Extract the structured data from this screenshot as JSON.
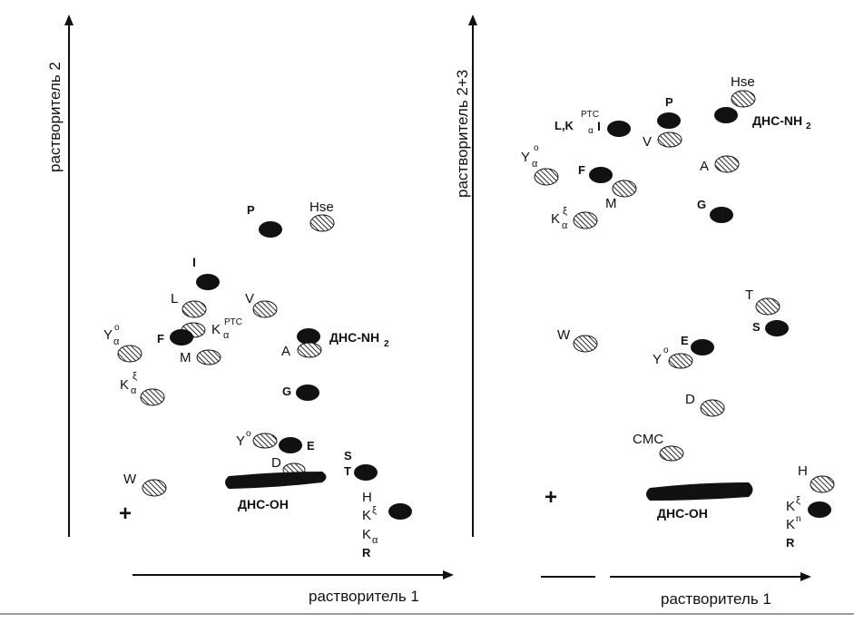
{
  "left_panel": {
    "x_axis_label": "растворитель 1",
    "y_axis_label": "растворитель 2",
    "origin_mark": "+",
    "spots": [
      {
        "label": "P",
        "type": "solid"
      },
      {
        "label": "Hse",
        "type": "hatched"
      },
      {
        "label": "I",
        "type": "solid"
      },
      {
        "label": "L",
        "type": "hatched"
      },
      {
        "label": "V",
        "type": "hatched"
      },
      {
        "label": "K",
        "type": "hatched"
      },
      {
        "label": "Y",
        "type": "hatched"
      },
      {
        "label": "F",
        "type": "solid"
      },
      {
        "label": "M",
        "type": "hatched"
      },
      {
        "label": "ДНС-NH2",
        "type": "solid"
      },
      {
        "label": "A",
        "type": "hatched"
      },
      {
        "label": "K",
        "type": "hatched"
      },
      {
        "label": "G",
        "type": "solid"
      },
      {
        "label": "Y",
        "type": "hatched"
      },
      {
        "label": "E",
        "type": "solid"
      },
      {
        "label": "D",
        "type": "hatched"
      },
      {
        "label": "S",
        "type": "solid"
      },
      {
        "label": "T",
        "type": "solid"
      },
      {
        "label": "W",
        "type": "hatched"
      },
      {
        "label": "ДНС-ОН",
        "type": "streak"
      },
      {
        "label": "H K K R",
        "type": "solid"
      }
    ],
    "texts": {
      "P": "P",
      "Hse": "Hse",
      "I": "I",
      "L": "L",
      "V": "V",
      "K": "K",
      "alpha": "α",
      "PTC": "PTC",
      "Y": "Y",
      "o": "o",
      "F": "F",
      "M": "M",
      "DNS_NH": "ДНС-NH",
      "sub2": "2",
      "A": "A",
      "xi": "ξ",
      "G": "G",
      "E": "E",
      "D": "D",
      "S": "S",
      "T": "T",
      "W": "W",
      "DNS_OH": "ДНС-ОН",
      "H": "H",
      "R": "R"
    }
  },
  "right_panel": {
    "x_axis_label": "растворитель 1",
    "y_axis_label": "растворитель 2+3",
    "origin_mark": "+",
    "spots": [
      {
        "label": "Hse",
        "type": "hatched"
      },
      {
        "label": "P",
        "type": "solid"
      },
      {
        "label": "L,K,I",
        "type": "solid"
      },
      {
        "label": "ДНС-NH2",
        "type": "solid"
      },
      {
        "label": "V",
        "type": "hatched"
      },
      {
        "label": "Y",
        "type": "hatched"
      },
      {
        "label": "F",
        "type": "solid"
      },
      {
        "label": "A",
        "type": "hatched"
      },
      {
        "label": "M",
        "type": "hatched"
      },
      {
        "label": "G",
        "type": "solid"
      },
      {
        "label": "K",
        "type": "hatched"
      },
      {
        "label": "T",
        "type": "hatched"
      },
      {
        "label": "S",
        "type": "solid"
      },
      {
        "label": "W",
        "type": "hatched"
      },
      {
        "label": "E",
        "type": "solid"
      },
      {
        "label": "Y",
        "type": "hatched"
      },
      {
        "label": "D",
        "type": "hatched"
      },
      {
        "label": "CMC",
        "type": "hatched"
      },
      {
        "label": "H",
        "type": "hatched"
      },
      {
        "label": "ДНС-ОН",
        "type": "streak"
      },
      {
        "label": "K K R",
        "type": "solid"
      }
    ],
    "texts": {
      "Hse": "Hse",
      "P": "P",
      "LK": "L,K",
      "I": "I",
      "alpha": "α",
      "PTC": "PTC",
      "DNS_NH": "ДНС-NH",
      "sub2": "2",
      "V": "V",
      "Y": "Y",
      "o": "o",
      "F": "F",
      "A": "A",
      "M": "M",
      "G": "G",
      "K": "K",
      "xi": "ξ",
      "T": "T",
      "S": "S",
      "W": "W",
      "E": "E",
      "D": "D",
      "CMC": "CMC",
      "H": "H",
      "DNS_OH": "ДНС-ОН",
      "n": "n",
      "R": "R"
    }
  }
}
